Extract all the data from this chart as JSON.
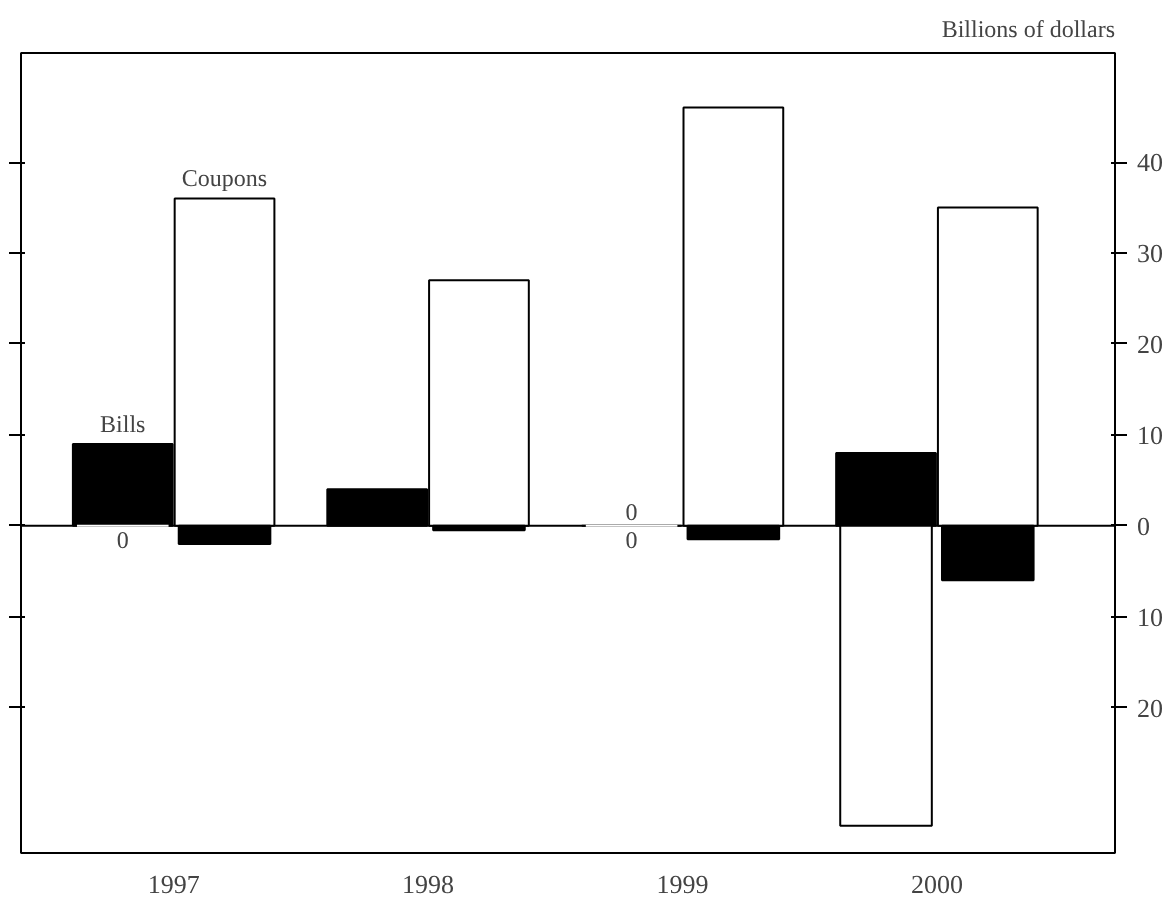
{
  "chart_data": {
    "type": "bar",
    "ylabel": "Billions of dollars",
    "categories": [
      "1997",
      "1998",
      "1999",
      "2000"
    ],
    "ylim": [
      -36,
      52
    ],
    "yticks": [
      {
        "value": -20,
        "label": "20"
      },
      {
        "value": -10,
        "label": "10"
      },
      0,
      10,
      20,
      30,
      40
    ],
    "series": [
      {
        "name": "Bills",
        "color": "#000000",
        "values": [
          9,
          4,
          0,
          8
        ],
        "value_labels": [
          null,
          null,
          "0",
          null
        ]
      },
      {
        "color": "#ffffff",
        "values": [
          0,
          null,
          0,
          -33
        ],
        "value_labels": [
          "0",
          null,
          "0",
          null
        ]
      },
      {
        "name": "Coupons",
        "color": "#ffffff",
        "values": [
          36,
          27,
          46,
          35
        ]
      },
      {
        "color": "#000000",
        "values": [
          -2,
          -0.5,
          -1.5,
          -6
        ]
      }
    ],
    "ref_lines": [
      {
        "axis": "y",
        "value": 0,
        "color": "#000000"
      }
    ],
    "grid": false
  }
}
